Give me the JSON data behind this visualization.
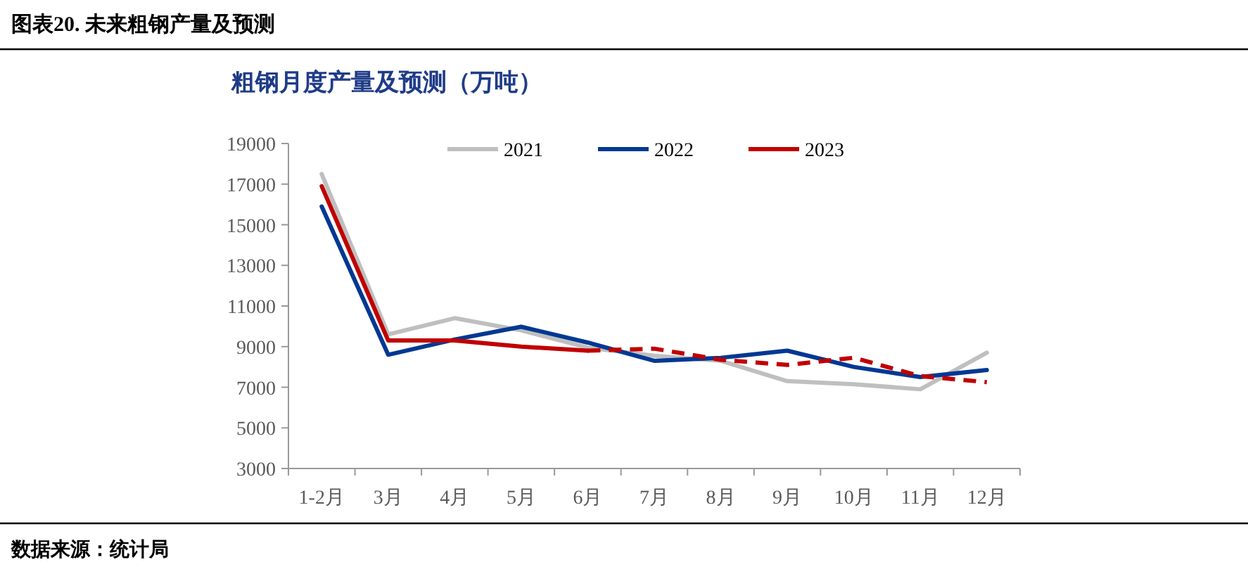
{
  "chart_data": {
    "type": "line",
    "title": "图表20. 未来粗钢产量及预测",
    "subtitle": "粗钢月度产量及预测（万吨）",
    "categories": [
      "1-2月",
      "3月",
      "4月",
      "5月",
      "6月",
      "7月",
      "8月",
      "9月",
      "10月",
      "11月",
      "12月"
    ],
    "series": [
      {
        "name": "2021",
        "color": "#bfbfbf",
        "line_style": "solid",
        "values": [
          17500,
          9600,
          10400,
          9800,
          8950,
          8550,
          8300,
          7300,
          7150,
          6900,
          8700
        ]
      },
      {
        "name": "2022",
        "color": "#003893",
        "line_style": "solid",
        "values": [
          15900,
          8600,
          9350,
          9980,
          9200,
          8300,
          8450,
          8800,
          8000,
          7500,
          7850
        ]
      },
      {
        "name": "2023",
        "color": "#c00000",
        "line_style": "solid",
        "values": [
          16900,
          9300,
          9300,
          9000,
          8800,
          null,
          null,
          null,
          null,
          null,
          null
        ]
      },
      {
        "color": "#c00000",
        "line_style": "dashed",
        "values": [
          null,
          null,
          null,
          null,
          8800,
          8900,
          8350,
          8100,
          8450,
          7550,
          7250
        ]
      }
    ],
    "ylim": [
      3000,
      19000
    ],
    "yticks": [
      3000,
      5000,
      7000,
      9000,
      11000,
      13000,
      15000,
      17000,
      19000
    ],
    "legend": "top",
    "annotations": [
      "数据来源：统计局"
    ]
  }
}
